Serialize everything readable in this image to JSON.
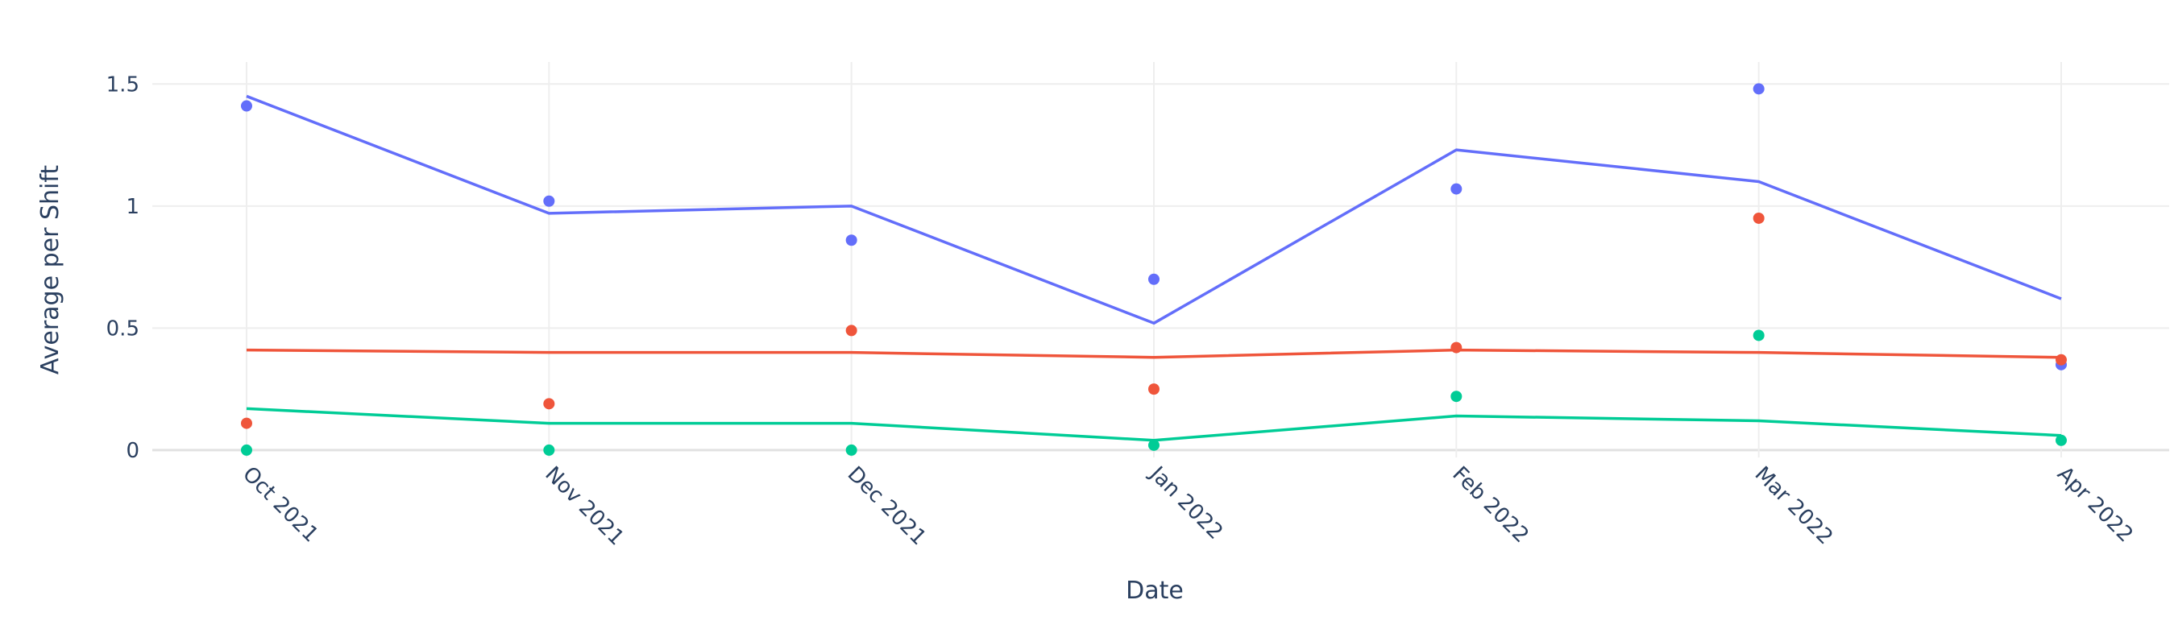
{
  "chart_data": {
    "type": "scatter",
    "x_label": "Date",
    "y_label": "Average per Shift",
    "categories": [
      "Oct 2021",
      "Nov 2021",
      "Dec 2021",
      "Jan 2022",
      "Feb 2022",
      "Mar 2022",
      "Apr 2022"
    ],
    "series": [
      {
        "mode": "markers",
        "color": "#636efa",
        "values": [
          1.41,
          1.02,
          0.86,
          0.7,
          1.07,
          1.48,
          0.35
        ]
      },
      {
        "mode": "markers",
        "color": "#ef553b",
        "values": [
          0.11,
          0.19,
          0.49,
          0.25,
          0.42,
          0.95,
          0.37
        ]
      },
      {
        "mode": "markers",
        "color": "#00cc96",
        "values": [
          0,
          0,
          0,
          0.02,
          0.22,
          0.47,
          0.04
        ]
      },
      {
        "mode": "lines",
        "color": "#636efa",
        "values": [
          1.45,
          0.97,
          1.0,
          0.52,
          1.23,
          1.1,
          0.62
        ]
      },
      {
        "mode": "lines",
        "color": "#ef553b",
        "values": [
          0.41,
          0.4,
          0.4,
          0.38,
          0.41,
          0.4,
          0.38
        ]
      },
      {
        "mode": "lines",
        "color": "#00cc96",
        "values": [
          0.17,
          0.11,
          0.11,
          0.04,
          0.14,
          0.12,
          0.06
        ]
      }
    ],
    "ylim": [
      -0.03,
      1.59
    ],
    "yticks": [
      0,
      0.5,
      1,
      1.5
    ],
    "grid": true
  }
}
